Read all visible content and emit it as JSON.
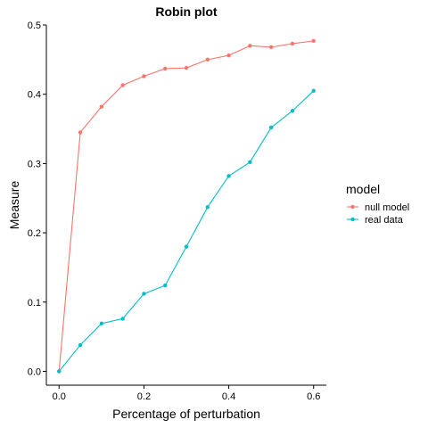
{
  "chart_data": {
    "type": "line",
    "title": "Robin plot",
    "xlabel": "Percentage of perturbation",
    "ylabel": "Measure",
    "xlim": [
      -0.03,
      0.63
    ],
    "ylim": [
      -0.02,
      0.5
    ],
    "x_ticks": [
      0.0,
      0.2,
      0.4,
      0.6
    ],
    "x_tick_labels": [
      "0.0",
      "0.2",
      "0.4",
      "0.6"
    ],
    "y_ticks": [
      0.0,
      0.1,
      0.2,
      0.3,
      0.4,
      0.5
    ],
    "y_tick_labels": [
      "0.0",
      "0.1",
      "0.2",
      "0.3",
      "0.4",
      "0.5"
    ],
    "grid": false,
    "legend": {
      "title": "model",
      "placement": "right"
    },
    "x": [
      0.0,
      0.05,
      0.1,
      0.15,
      0.2,
      0.25,
      0.3,
      0.35,
      0.4,
      0.45,
      0.5,
      0.55,
      0.6
    ],
    "series": [
      {
        "name": "null model",
        "color": "#F8766D",
        "values": [
          0.0,
          0.345,
          0.382,
          0.413,
          0.426,
          0.437,
          0.438,
          0.45,
          0.456,
          0.47,
          0.468,
          0.473,
          0.477
        ]
      },
      {
        "name": "real data",
        "color": "#00BFC4",
        "values": [
          0.0,
          0.038,
          0.069,
          0.076,
          0.112,
          0.124,
          0.18,
          0.237,
          0.282,
          0.302,
          0.352,
          0.376,
          0.405
        ]
      }
    ]
  }
}
